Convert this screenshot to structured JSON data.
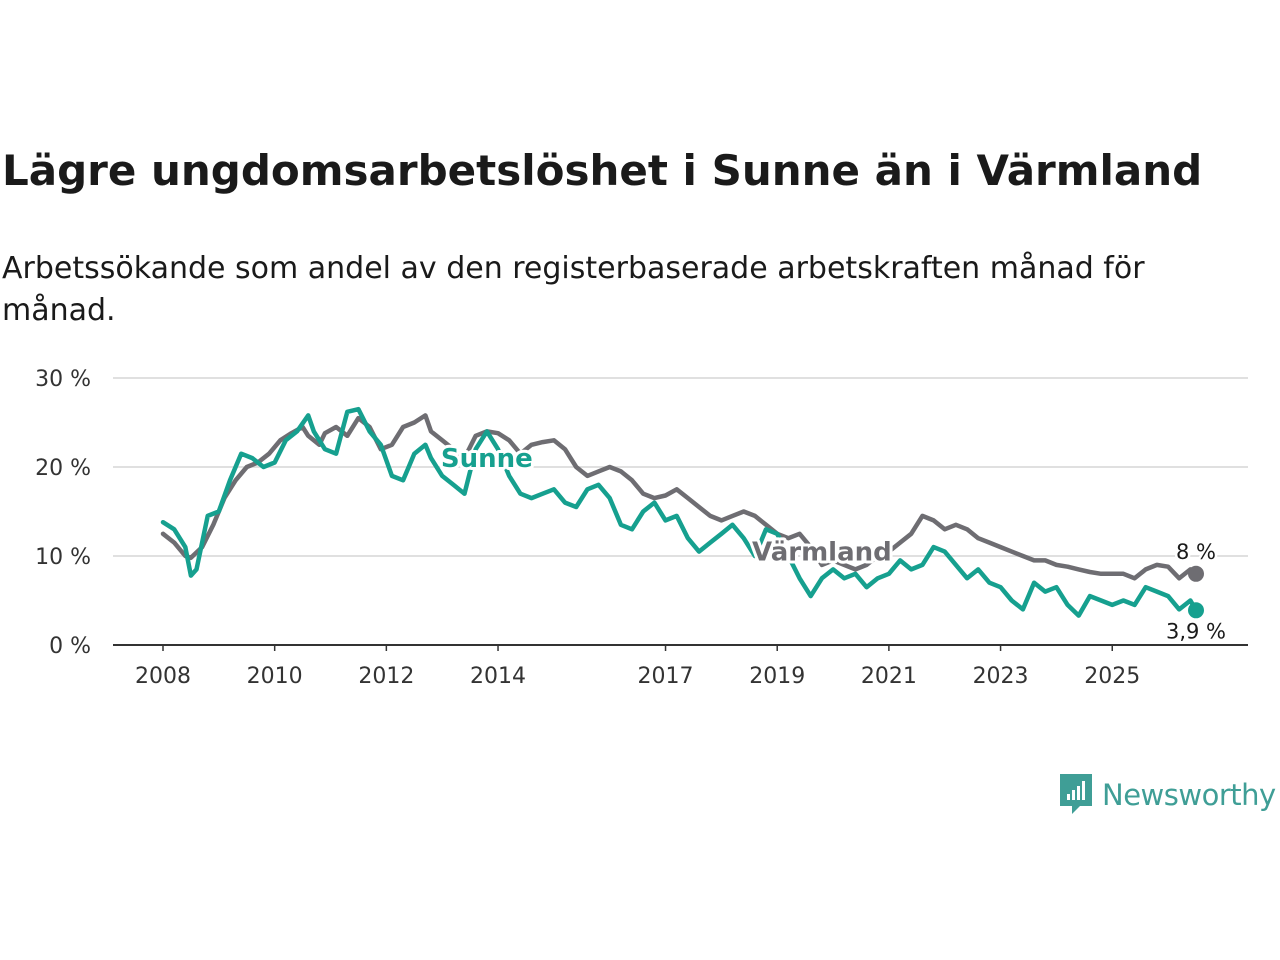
{
  "header": {
    "title": "Lägre ungdomsarbetslöshet i Sunne än i Värmland",
    "subtitle": "Arbetssökande som andel av den registerbaserade arbetskraften månad för månad."
  },
  "brand": {
    "name": "Newsworthy",
    "icon": "newsworthy-logo-icon",
    "color": "#3f9e96"
  },
  "chart_data": {
    "type": "line",
    "title": "Lägre ungdomsarbetslöshet i Sunne än i Värmland",
    "subtitle": "Arbetssökande som andel av den registerbaserade arbetskraften månad för månad.",
    "xlabel": "",
    "ylabel": "",
    "xlim": [
      2008.0,
      2026.5
    ],
    "ylim": [
      0,
      30
    ],
    "y_ticks": [
      {
        "value": 0,
        "label": "0 %"
      },
      {
        "value": 10,
        "label": "10 %"
      },
      {
        "value": 20,
        "label": "20 %"
      },
      {
        "value": 30,
        "label": "30 %"
      }
    ],
    "x_ticks": [
      {
        "value": 2008,
        "label": "2008"
      },
      {
        "value": 2010,
        "label": "2010"
      },
      {
        "value": 2012,
        "label": "2012"
      },
      {
        "value": 2014,
        "label": "2014"
      },
      {
        "value": 2017,
        "label": "2017"
      },
      {
        "value": 2019,
        "label": "2019"
      },
      {
        "value": 2021,
        "label": "2021"
      },
      {
        "value": 2023,
        "label": "2023"
      },
      {
        "value": 2025,
        "label": "2025"
      }
    ],
    "grid": true,
    "series": [
      {
        "name": "Värmland",
        "color": "#6e6d72",
        "label": "Värmland",
        "label_at": [
          2019.8,
          9.5
        ],
        "end_label": "8 %",
        "points": [
          [
            2008.0,
            12.5
          ],
          [
            2008.2,
            11.5
          ],
          [
            2008.4,
            10.0
          ],
          [
            2008.5,
            9.8
          ],
          [
            2008.7,
            11.0
          ],
          [
            2008.9,
            13.5
          ],
          [
            2009.1,
            16.5
          ],
          [
            2009.3,
            18.5
          ],
          [
            2009.5,
            20.0
          ],
          [
            2009.7,
            20.5
          ],
          [
            2009.9,
            21.5
          ],
          [
            2010.1,
            23.0
          ],
          [
            2010.3,
            23.8
          ],
          [
            2010.5,
            24.5
          ],
          [
            2010.6,
            23.5
          ],
          [
            2010.8,
            22.5
          ],
          [
            2010.9,
            23.8
          ],
          [
            2011.1,
            24.5
          ],
          [
            2011.3,
            23.5
          ],
          [
            2011.5,
            25.5
          ],
          [
            2011.7,
            24.5
          ],
          [
            2011.9,
            22.0
          ],
          [
            2012.1,
            22.5
          ],
          [
            2012.3,
            24.5
          ],
          [
            2012.5,
            25.0
          ],
          [
            2012.7,
            25.8
          ],
          [
            2012.8,
            24.0
          ],
          [
            2013.0,
            23.0
          ],
          [
            2013.2,
            22.0
          ],
          [
            2013.4,
            21.0
          ],
          [
            2013.6,
            23.5
          ],
          [
            2013.8,
            24.0
          ],
          [
            2014.0,
            23.8
          ],
          [
            2014.2,
            23.0
          ],
          [
            2014.4,
            21.5
          ],
          [
            2014.6,
            22.5
          ],
          [
            2014.8,
            22.8
          ],
          [
            2015.0,
            23.0
          ],
          [
            2015.2,
            22.0
          ],
          [
            2015.4,
            20.0
          ],
          [
            2015.6,
            19.0
          ],
          [
            2015.8,
            19.5
          ],
          [
            2016.0,
            20.0
          ],
          [
            2016.2,
            19.5
          ],
          [
            2016.4,
            18.5
          ],
          [
            2016.6,
            17.0
          ],
          [
            2016.8,
            16.5
          ],
          [
            2017.0,
            16.8
          ],
          [
            2017.2,
            17.5
          ],
          [
            2017.4,
            16.5
          ],
          [
            2017.6,
            15.5
          ],
          [
            2017.8,
            14.5
          ],
          [
            2018.0,
            14.0
          ],
          [
            2018.2,
            14.5
          ],
          [
            2018.4,
            15.0
          ],
          [
            2018.6,
            14.5
          ],
          [
            2018.8,
            13.5
          ],
          [
            2019.0,
            12.5
          ],
          [
            2019.2,
            12.0
          ],
          [
            2019.4,
            12.5
          ],
          [
            2019.6,
            11.0
          ],
          [
            2019.8,
            9.0
          ],
          [
            2020.0,
            9.5
          ],
          [
            2020.2,
            9.0
          ],
          [
            2020.4,
            8.5
          ],
          [
            2020.6,
            9.0
          ],
          [
            2020.8,
            10.0
          ],
          [
            2021.0,
            10.5
          ],
          [
            2021.2,
            11.5
          ],
          [
            2021.4,
            12.5
          ],
          [
            2021.6,
            14.5
          ],
          [
            2021.8,
            14.0
          ],
          [
            2022.0,
            13.0
          ],
          [
            2022.2,
            13.5
          ],
          [
            2022.4,
            13.0
          ],
          [
            2022.6,
            12.0
          ],
          [
            2022.8,
            11.5
          ],
          [
            2023.0,
            11.0
          ],
          [
            2023.2,
            10.5
          ],
          [
            2023.4,
            10.0
          ],
          [
            2023.6,
            9.5
          ],
          [
            2023.8,
            9.5
          ],
          [
            2024.0,
            9.0
          ],
          [
            2024.2,
            8.8
          ],
          [
            2024.4,
            8.5
          ],
          [
            2024.6,
            8.2
          ],
          [
            2024.8,
            8.0
          ],
          [
            2025.0,
            8.0
          ],
          [
            2025.2,
            8.0
          ],
          [
            2025.4,
            7.5
          ],
          [
            2025.6,
            8.5
          ],
          [
            2025.8,
            9.0
          ],
          [
            2026.0,
            8.8
          ],
          [
            2026.2,
            7.5
          ],
          [
            2026.4,
            8.5
          ],
          [
            2026.5,
            8.0
          ]
        ]
      },
      {
        "name": "Sunne",
        "color": "#16a08f",
        "label": "Sunne",
        "label_at": [
          2013.8,
          20.0
        ],
        "end_label": "3,9 %",
        "points": [
          [
            2008.0,
            13.8
          ],
          [
            2008.2,
            13.0
          ],
          [
            2008.4,
            11.0
          ],
          [
            2008.5,
            7.8
          ],
          [
            2008.6,
            8.5
          ],
          [
            2008.8,
            14.5
          ],
          [
            2009.0,
            15.0
          ],
          [
            2009.2,
            18.5
          ],
          [
            2009.4,
            21.5
          ],
          [
            2009.6,
            21.0
          ],
          [
            2009.8,
            20.0
          ],
          [
            2010.0,
            20.5
          ],
          [
            2010.2,
            23.0
          ],
          [
            2010.4,
            24.0
          ],
          [
            2010.6,
            25.8
          ],
          [
            2010.7,
            24.0
          ],
          [
            2010.9,
            22.0
          ],
          [
            2011.1,
            21.5
          ],
          [
            2011.3,
            26.2
          ],
          [
            2011.5,
            26.5
          ],
          [
            2011.7,
            24.0
          ],
          [
            2011.9,
            22.5
          ],
          [
            2012.1,
            19.0
          ],
          [
            2012.3,
            18.5
          ],
          [
            2012.5,
            21.5
          ],
          [
            2012.7,
            22.5
          ],
          [
            2012.8,
            21.0
          ],
          [
            2013.0,
            19.0
          ],
          [
            2013.2,
            18.0
          ],
          [
            2013.4,
            17.0
          ],
          [
            2013.6,
            22.0
          ],
          [
            2013.8,
            24.0
          ],
          [
            2014.0,
            22.0
          ],
          [
            2014.2,
            19.0
          ],
          [
            2014.4,
            17.0
          ],
          [
            2014.6,
            16.5
          ],
          [
            2014.8,
            17.0
          ],
          [
            2015.0,
            17.5
          ],
          [
            2015.2,
            16.0
          ],
          [
            2015.4,
            15.5
          ],
          [
            2015.6,
            17.5
          ],
          [
            2015.8,
            18.0
          ],
          [
            2016.0,
            16.5
          ],
          [
            2016.2,
            13.5
          ],
          [
            2016.4,
            13.0
          ],
          [
            2016.6,
            15.0
          ],
          [
            2016.8,
            16.0
          ],
          [
            2017.0,
            14.0
          ],
          [
            2017.2,
            14.5
          ],
          [
            2017.4,
            12.0
          ],
          [
            2017.6,
            10.5
          ],
          [
            2017.8,
            11.5
          ],
          [
            2018.0,
            12.5
          ],
          [
            2018.2,
            13.5
          ],
          [
            2018.4,
            12.0
          ],
          [
            2018.6,
            10.0
          ],
          [
            2018.8,
            13.0
          ],
          [
            2019.0,
            12.5
          ],
          [
            2019.2,
            10.0
          ],
          [
            2019.4,
            7.5
          ],
          [
            2019.6,
            5.5
          ],
          [
            2019.8,
            7.5
          ],
          [
            2020.0,
            8.5
          ],
          [
            2020.2,
            7.5
          ],
          [
            2020.4,
            8.0
          ],
          [
            2020.6,
            6.5
          ],
          [
            2020.8,
            7.5
          ],
          [
            2021.0,
            8.0
          ],
          [
            2021.2,
            9.5
          ],
          [
            2021.4,
            8.5
          ],
          [
            2021.6,
            9.0
          ],
          [
            2021.8,
            11.0
          ],
          [
            2022.0,
            10.5
          ],
          [
            2022.2,
            9.0
          ],
          [
            2022.4,
            7.5
          ],
          [
            2022.6,
            8.5
          ],
          [
            2022.8,
            7.0
          ],
          [
            2023.0,
            6.5
          ],
          [
            2023.2,
            5.0
          ],
          [
            2023.4,
            4.0
          ],
          [
            2023.6,
            7.0
          ],
          [
            2023.8,
            6.0
          ],
          [
            2024.0,
            6.5
          ],
          [
            2024.2,
            4.5
          ],
          [
            2024.4,
            3.3
          ],
          [
            2024.6,
            5.5
          ],
          [
            2024.8,
            5.0
          ],
          [
            2025.0,
            4.5
          ],
          [
            2025.2,
            5.0
          ],
          [
            2025.4,
            4.5
          ],
          [
            2025.6,
            6.5
          ],
          [
            2025.8,
            6.0
          ],
          [
            2026.0,
            5.5
          ],
          [
            2026.2,
            4.0
          ],
          [
            2026.4,
            5.0
          ],
          [
            2026.5,
            3.9
          ]
        ]
      }
    ]
  }
}
